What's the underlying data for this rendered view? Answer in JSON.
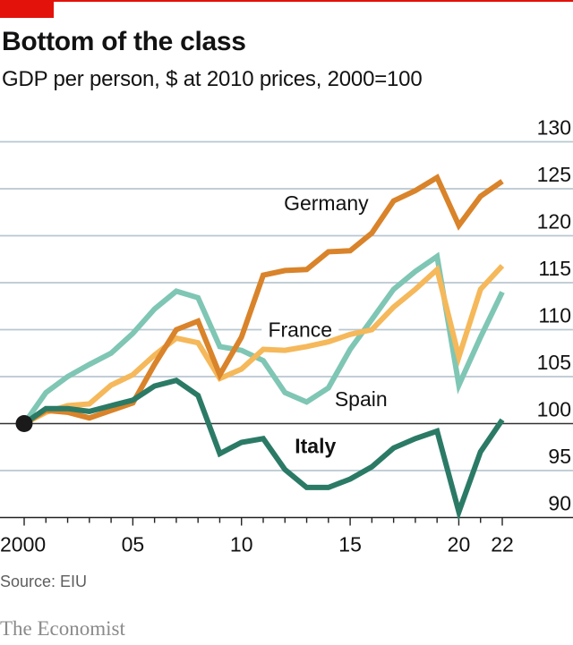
{
  "header": {
    "title": "Bottom of the class",
    "subtitle": "GDP per person, $ at 2010 prices, 2000=100"
  },
  "footer": {
    "source": "Source: EIU",
    "brand": "The Economist"
  },
  "colors": {
    "accent": "#e3120b",
    "gridline": "#b9c7d0",
    "baseline": "#333333",
    "germany": "#d9832a",
    "france": "#f5b85a",
    "spain": "#7fc6b4",
    "italy": "#2b7a66",
    "origin_marker": "#1a1a1a"
  },
  "chart_data": {
    "type": "line",
    "title": "Bottom of the class",
    "subtitle": "GDP per person, $ at 2010 prices, 2000=100",
    "xlabel": "",
    "ylabel": "",
    "x": [
      2000,
      2001,
      2002,
      2003,
      2004,
      2005,
      2006,
      2007,
      2008,
      2009,
      2010,
      2011,
      2012,
      2013,
      2014,
      2015,
      2016,
      2017,
      2018,
      2019,
      2020,
      2021,
      2022
    ],
    "xlim": [
      2000,
      2022
    ],
    "ylim": [
      90,
      130
    ],
    "x_ticks": [
      {
        "value": 2000,
        "label": "2000"
      },
      {
        "value": 2005,
        "label": "05"
      },
      {
        "value": 2010,
        "label": "10"
      },
      {
        "value": 2015,
        "label": "15"
      },
      {
        "value": 2020,
        "label": "20"
      },
      {
        "value": 2022,
        "label": "22"
      }
    ],
    "y_ticks": [
      90,
      95,
      100,
      105,
      110,
      115,
      120,
      125,
      130
    ],
    "y_axis_side": "right",
    "grid": true,
    "reference_line": 100,
    "origin_marker": {
      "x": 2000,
      "y": 100
    },
    "legend": "inline-labels",
    "series": [
      {
        "name": "Germany",
        "key": "germany",
        "label_bold": false,
        "label_anchor": {
          "x": 2013.9,
          "y": 123.5
        },
        "values": [
          100,
          101.4,
          101.2,
          100.6,
          101.4,
          102.2,
          106.3,
          110.0,
          110.9,
          105.2,
          109.2,
          115.8,
          116.3,
          116.4,
          118.3,
          118.4,
          120.3,
          123.7,
          124.8,
          126.2,
          121.1,
          124.2,
          125.8
        ]
      },
      {
        "name": "France",
        "key": "france",
        "label_bold": false,
        "label_anchor": {
          "x": 2012.7,
          "y": 110.0
        },
        "values": [
          100,
          101.2,
          101.9,
          102.1,
          104.1,
          105.2,
          107.3,
          109.1,
          108.6,
          104.8,
          105.8,
          107.9,
          107.8,
          108.2,
          108.7,
          109.5,
          110.0,
          112.4,
          114.3,
          116.4,
          107.1,
          114.3,
          116.8
        ]
      },
      {
        "name": "Spain",
        "key": "spain",
        "label_bold": false,
        "label_anchor": {
          "x": 2015.5,
          "y": 102.6
        },
        "values": [
          100,
          103.3,
          105.0,
          106.3,
          107.5,
          109.6,
          112.2,
          114.1,
          113.4,
          108.2,
          107.8,
          106.7,
          103.3,
          102.3,
          103.8,
          107.9,
          111.1,
          114.3,
          116.2,
          117.8,
          104.1,
          109.2,
          114.0
        ]
      },
      {
        "name": "Italy",
        "key": "italy",
        "label_bold": true,
        "label_anchor": {
          "x": 2013.4,
          "y": 97.6
        },
        "values": [
          100,
          101.6,
          101.6,
          101.3,
          101.9,
          102.5,
          104.0,
          104.6,
          103.0,
          96.8,
          98.0,
          98.4,
          95.1,
          93.2,
          93.2,
          94.1,
          95.4,
          97.4,
          98.4,
          99.2,
          90.6,
          97.0,
          100.4
        ]
      }
    ],
    "source": "EIU"
  }
}
